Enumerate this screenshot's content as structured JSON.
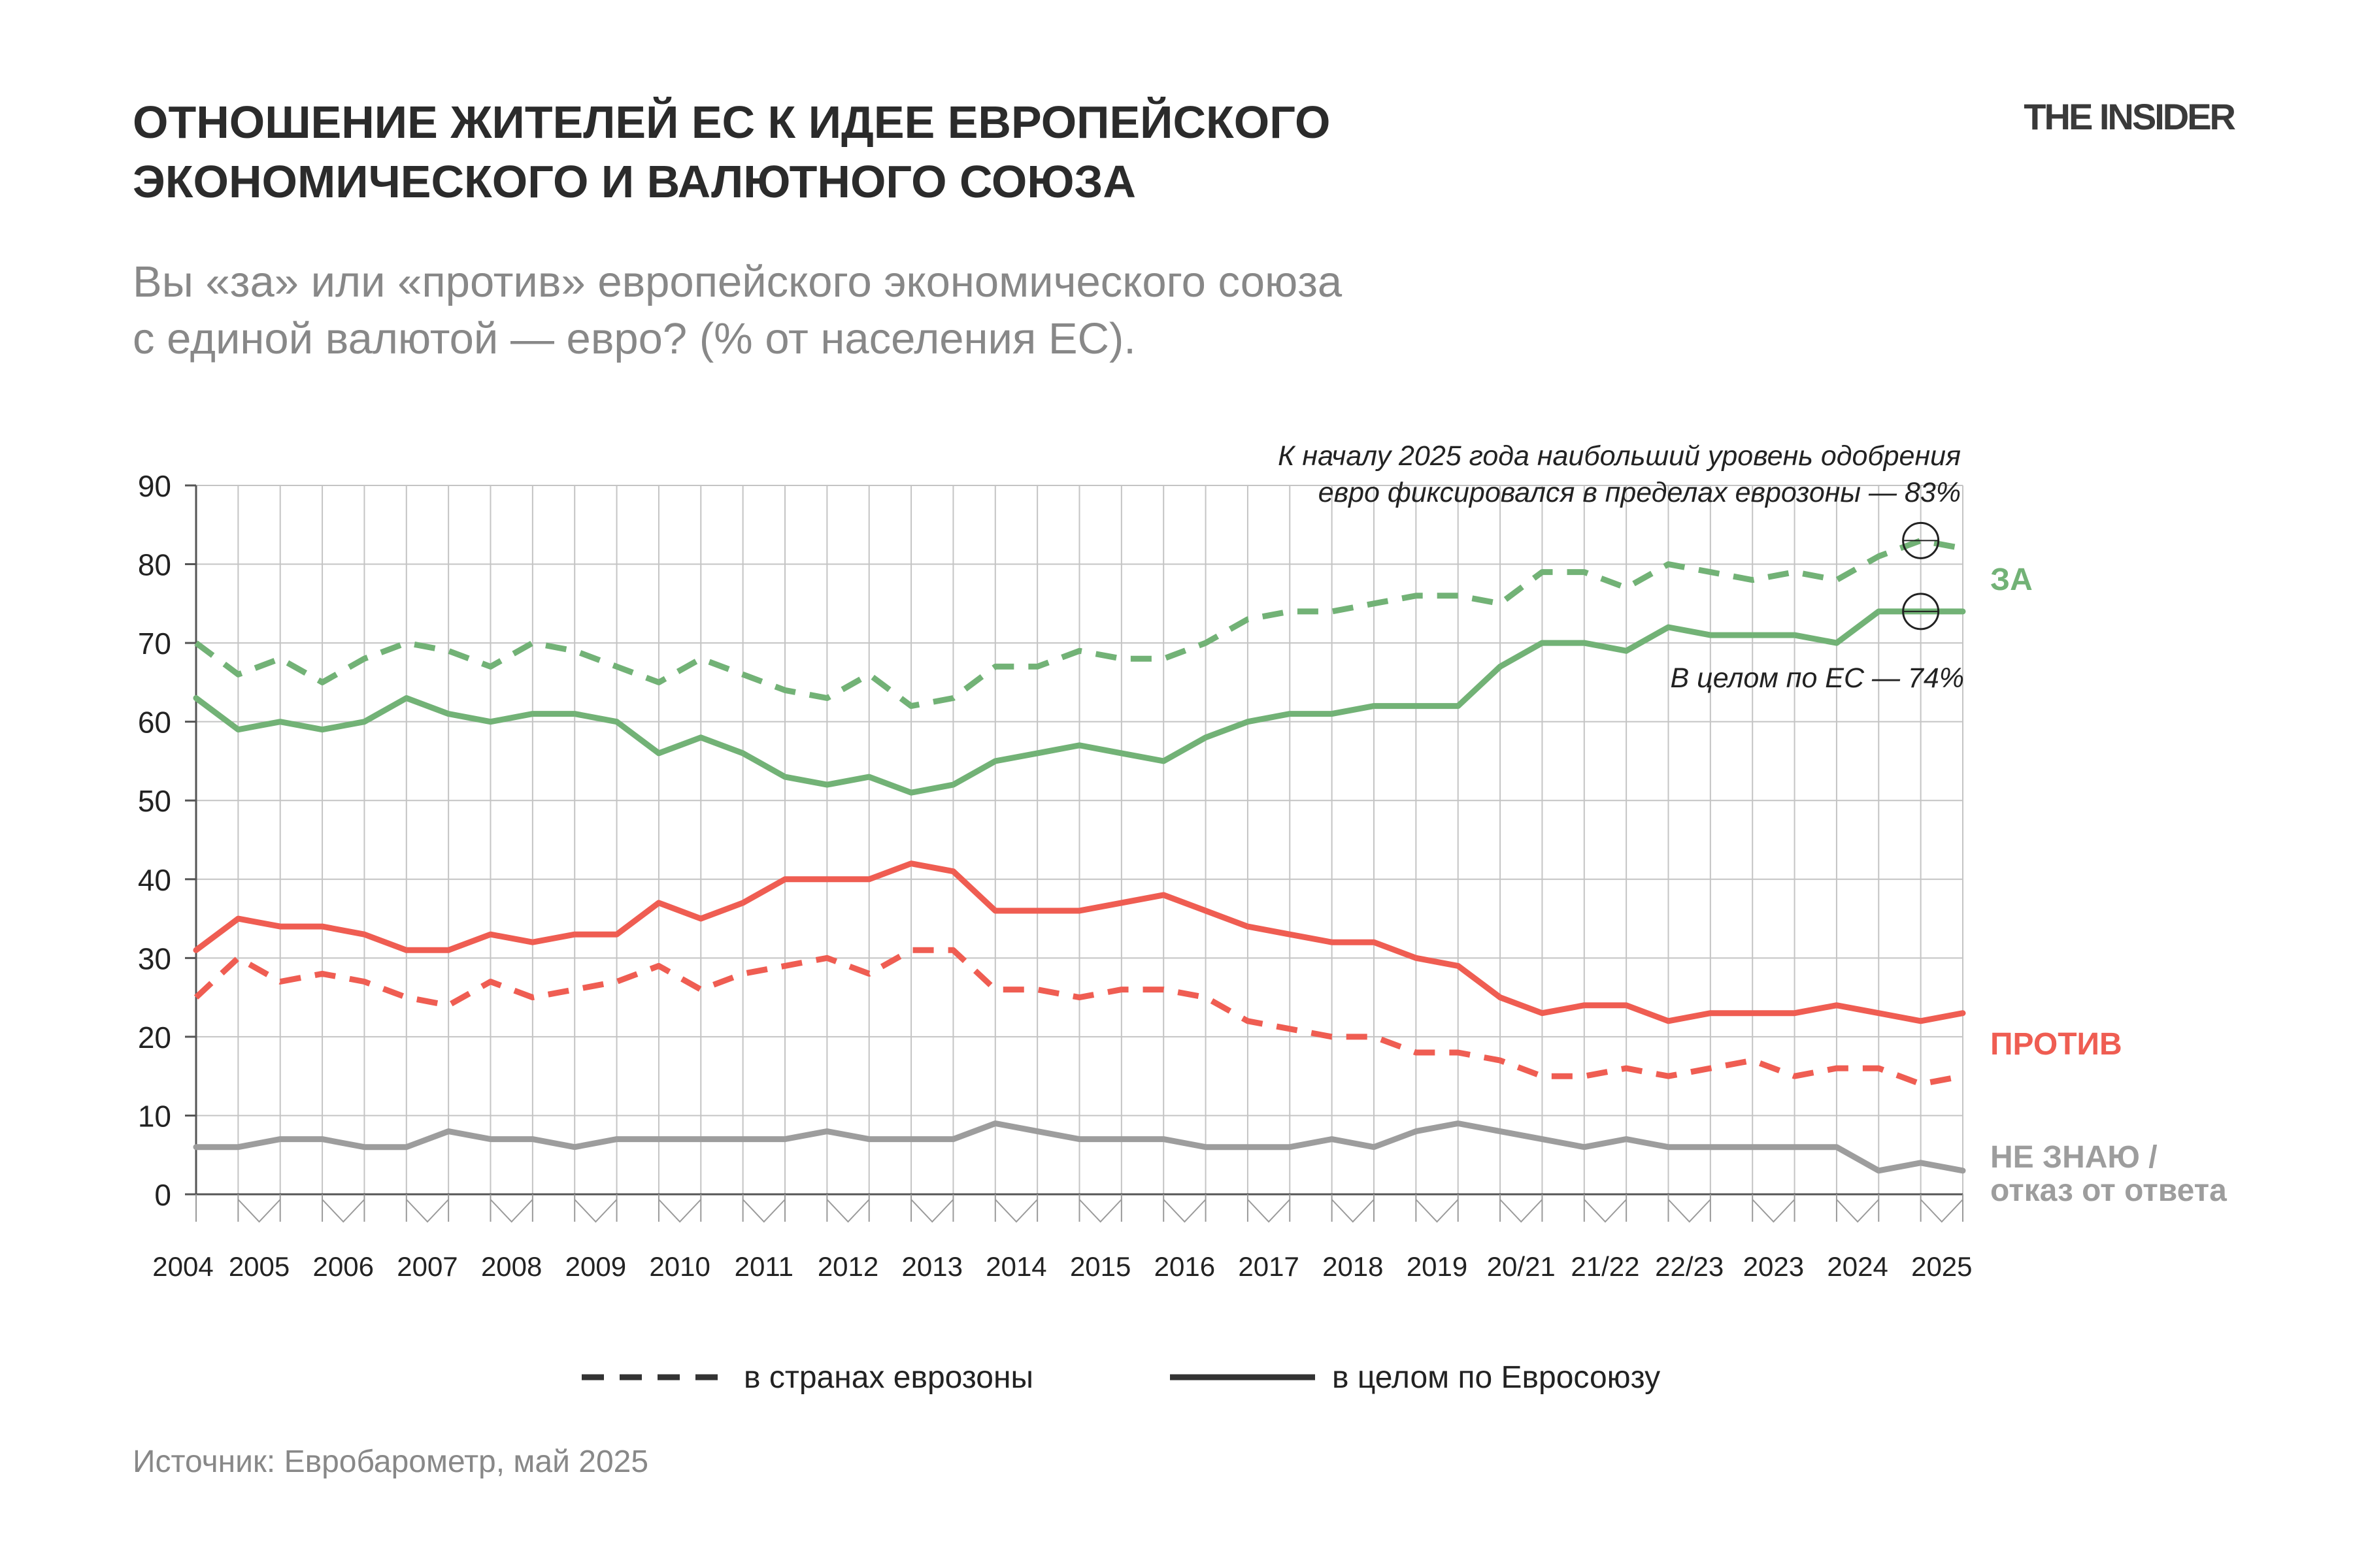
{
  "brand": "THE INSIDER",
  "title_lines": [
    "ОТНОШЕНИЕ ЖИТЕЛЕЙ ЕС К ИДЕЕ ЕВРОПЕЙСКОГО",
    "ЭКОНОМИЧЕСКОГО И ВАЛЮТНОГО СОЮЗА"
  ],
  "subtitle_lines": [
    "Вы «за» или «против» европейского экономического союза",
    "с единой валютой — евро? (% от населения ЕС)."
  ],
  "source": "Источник: Евробарометр, май 2025",
  "colors": {
    "za": "#72b276",
    "protiv": "#ef5d52",
    "ne_znayu": "#9d9d9d",
    "grid": "#c4c4c4",
    "axis": "#555555"
  },
  "legend": {
    "dashed": "в странах еврозоны",
    "solid": "в целом по Евросоюзу"
  },
  "chart_data": {
    "type": "line",
    "ylim": [
      0,
      90
    ],
    "yticks": [
      0,
      10,
      20,
      30,
      40,
      50,
      60,
      70,
      80,
      90
    ],
    "x_axis_labels": [
      "2004",
      "2005",
      "2006",
      "2007",
      "2008",
      "2009",
      "2010",
      "2011",
      "2012",
      "2013",
      "2014",
      "2015",
      "2016",
      "2017",
      "2018",
      "2019",
      "20/21",
      "21/22",
      "22/23",
      "2023",
      "2024",
      "2025"
    ],
    "survey_points": 43,
    "series": [
      {
        "group": "za",
        "style": "dashed",
        "values": [
          70,
          66,
          68,
          65,
          68,
          70,
          69,
          67,
          70,
          69,
          67,
          65,
          68,
          66,
          64,
          63,
          66,
          62,
          63,
          67,
          67,
          69,
          68,
          68,
          70,
          73,
          74,
          74,
          75,
          76,
          76,
          75,
          79,
          79,
          77,
          80,
          79,
          78,
          79,
          78,
          81,
          83,
          82
        ]
      },
      {
        "group": "za",
        "style": "solid",
        "values": [
          63,
          59,
          60,
          59,
          60,
          63,
          61,
          60,
          61,
          61,
          60,
          56,
          58,
          56,
          53,
          52,
          53,
          51,
          52,
          55,
          56,
          57,
          56,
          55,
          58,
          60,
          61,
          61,
          62,
          62,
          62,
          67,
          70,
          70,
          69,
          72,
          71,
          71,
          71,
          70,
          74,
          74,
          74
        ]
      },
      {
        "group": "protiv",
        "style": "solid",
        "values": [
          31,
          35,
          34,
          34,
          33,
          31,
          31,
          33,
          32,
          33,
          33,
          37,
          35,
          37,
          40,
          40,
          40,
          42,
          41,
          36,
          36,
          36,
          37,
          38,
          36,
          34,
          33,
          32,
          32,
          30,
          29,
          25,
          23,
          24,
          24,
          22,
          23,
          23,
          23,
          24,
          23,
          22,
          23
        ]
      },
      {
        "group": "protiv",
        "style": "dashed",
        "values": [
          25,
          30,
          27,
          28,
          27,
          25,
          24,
          27,
          25,
          26,
          27,
          29,
          26,
          28,
          29,
          30,
          28,
          31,
          31,
          26,
          26,
          25,
          26,
          26,
          25,
          22,
          21,
          20,
          20,
          18,
          18,
          17,
          15,
          15,
          16,
          15,
          16,
          17,
          15,
          16,
          16,
          14,
          15
        ]
      },
      {
        "group": "ne_znayu",
        "style": "solid",
        "values": [
          6,
          6,
          7,
          7,
          6,
          6,
          8,
          7,
          7,
          6,
          7,
          7,
          7,
          7,
          7,
          8,
          7,
          7,
          7,
          9,
          8,
          7,
          7,
          7,
          6,
          6,
          6,
          7,
          6,
          8,
          9,
          8,
          7,
          6,
          7,
          6,
          6,
          6,
          6,
          6,
          3,
          4,
          3
        ]
      }
    ],
    "series_labels": {
      "za": "ЗА",
      "protiv": "ПРОТИВ",
      "ne_znayu_1": "НЕ ЗНАЮ /",
      "ne_znayu_2": "отказ от ответа"
    },
    "annotations": {
      "top_1": "К началу 2025 года наибольший уровень одобрения",
      "top_2": "евро фиксировался в пределах еврозоны — 83%",
      "bottom": "В целом по ЕС — 74%",
      "circles": [
        {
          "index": 41,
          "value": 83
        },
        {
          "index": 41,
          "value": 74
        }
      ]
    }
  }
}
